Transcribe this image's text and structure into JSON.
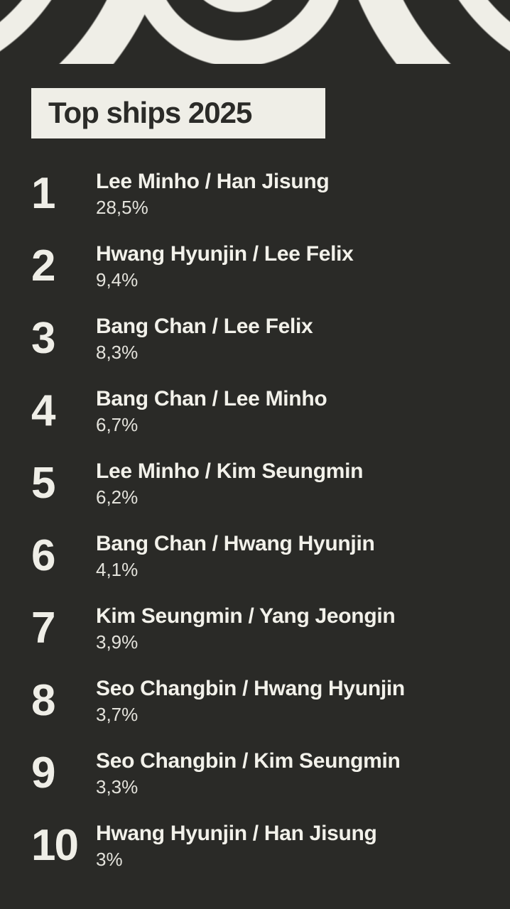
{
  "title": "Top ships 2025",
  "colors": {
    "background": "#2a2a27",
    "cream": "#efeee7",
    "title_text": "#2b2b28",
    "name_text": "#f2f1ea",
    "percent_text": "#e4e3dc"
  },
  "chart_data": {
    "type": "table",
    "title": "Top ships 2025",
    "columns": [
      "rank",
      "pair",
      "percentage"
    ],
    "unit": "%",
    "rows": [
      {
        "rank": "1",
        "pair": "Lee Minho / Han Jisung",
        "percentage": "28,5%",
        "value": 28.5
      },
      {
        "rank": "2",
        "pair": "Hwang Hyunjin / Lee Felix",
        "percentage": "9,4%",
        "value": 9.4
      },
      {
        "rank": "3",
        "pair": "Bang Chan / Lee Felix",
        "percentage": "8,3%",
        "value": 8.3
      },
      {
        "rank": "4",
        "pair": "Bang Chan / Lee Minho",
        "percentage": "6,7%",
        "value": 6.7
      },
      {
        "rank": "5",
        "pair": "Lee Minho / Kim Seungmin",
        "percentage": "6,2%",
        "value": 6.2
      },
      {
        "rank": "6",
        "pair": "Bang Chan / Hwang Hyunjin",
        "percentage": "4,1%",
        "value": 4.1
      },
      {
        "rank": "7",
        "pair": "Kim Seungmin / Yang Jeongin",
        "percentage": "3,9%",
        "value": 3.9
      },
      {
        "rank": "8",
        "pair": "Seo Changbin / Hwang Hyunjin",
        "percentage": "3,7%",
        "value": 3.7
      },
      {
        "rank": "9",
        "pair": "Seo Changbin / Kim Seungmin",
        "percentage": "3,3%",
        "value": 3.3
      },
      {
        "rank": "10",
        "pair": "Hwang Hyunjin / Han Jisung",
        "percentage": "3%",
        "value": 3.0
      }
    ]
  }
}
